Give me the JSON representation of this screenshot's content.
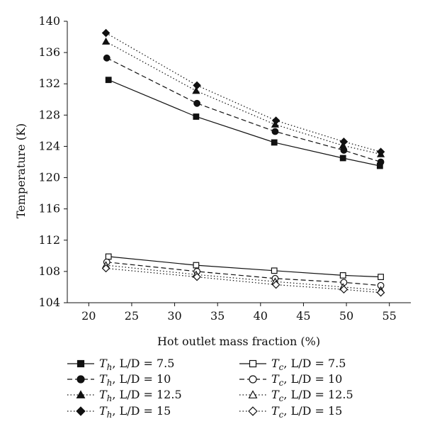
{
  "chart_data": {
    "type": "line",
    "xlabel": "Hot outlet mass fraction (%)",
    "ylabel": "Temperature (K)",
    "xlim": [
      17.5,
      57.5
    ],
    "ylim": [
      104,
      140
    ],
    "xticks": [
      20,
      25,
      30,
      35,
      40,
      45,
      50,
      55
    ],
    "yticks": [
      104,
      108,
      112,
      116,
      120,
      124,
      128,
      132,
      136,
      140
    ],
    "x_tick_labels": [
      "20",
      "25",
      "30",
      "35",
      "40",
      "45",
      "50",
      "55"
    ],
    "y_tick_labels": [
      "104",
      "108",
      "112",
      "116",
      "120",
      "124",
      "128",
      "132",
      "136",
      "140"
    ],
    "grid": false,
    "legend_position": "bottom",
    "series": [
      {
        "name": "T_h, L/D = 7.5",
        "symbol": "T",
        "subscript": "h",
        "rest": ", L/D = 7.5",
        "marker": "square",
        "filled": true,
        "dash": "solid",
        "x": [
          22.3,
          32.5,
          41.6,
          49.6,
          53.9
        ],
        "y": [
          132.5,
          127.8,
          124.5,
          122.5,
          121.5
        ]
      },
      {
        "name": "T_h, L/D = 10",
        "symbol": "T",
        "subscript": "h",
        "rest": ", L/D = 10",
        "marker": "circle",
        "filled": true,
        "dash": "dashed",
        "x": [
          22.1,
          32.6,
          41.7,
          49.7,
          54.0
        ],
        "y": [
          135.3,
          129.5,
          125.9,
          123.5,
          122.0
        ]
      },
      {
        "name": "T_h, L/D = 12.5",
        "symbol": "T",
        "subscript": "h",
        "rest": ", L/D = 12.5",
        "marker": "triangle",
        "filled": true,
        "dash": "dotted",
        "x": [
          22.0,
          32.5,
          41.7,
          49.6,
          54.0
        ],
        "y": [
          137.4,
          131.1,
          126.8,
          124.1,
          123.0
        ]
      },
      {
        "name": "T_h, L/D = 15",
        "symbol": "T",
        "subscript": "h",
        "rest": ", L/D = 15",
        "marker": "diamond",
        "filled": true,
        "dash": "dotted",
        "x": [
          22.0,
          32.6,
          41.8,
          49.7,
          54.0
        ],
        "y": [
          138.5,
          131.8,
          127.3,
          124.6,
          123.3
        ]
      },
      {
        "name": "T_c, L/D = 7.5",
        "symbol": "T",
        "subscript": "c",
        "rest": ", L/D = 7.5",
        "marker": "square",
        "filled": false,
        "dash": "solid",
        "x": [
          22.3,
          32.5,
          41.6,
          49.6,
          54.0
        ],
        "y": [
          109.9,
          108.8,
          108.1,
          107.5,
          107.3
        ]
      },
      {
        "name": "T_c, L/D = 10",
        "symbol": "T",
        "subscript": "c",
        "rest": ", L/D = 10",
        "marker": "circle",
        "filled": false,
        "dash": "dashed",
        "x": [
          22.1,
          32.6,
          41.7,
          49.7,
          54.0
        ],
        "y": [
          109.2,
          108.0,
          107.1,
          106.6,
          106.2
        ]
      },
      {
        "name": "T_c, L/D = 12.5",
        "symbol": "T",
        "subscript": "c",
        "rest": ", L/D = 12.5",
        "marker": "triangle",
        "filled": false,
        "dash": "dotted",
        "x": [
          22.0,
          32.5,
          41.7,
          49.6,
          54.0
        ],
        "y": [
          108.8,
          107.6,
          106.7,
          106.0,
          105.6
        ]
      },
      {
        "name": "T_c, L/D = 15",
        "symbol": "T",
        "subscript": "c",
        "rest": ", L/D = 15",
        "marker": "diamond",
        "filled": false,
        "dash": "dotted",
        "x": [
          22.0,
          32.6,
          41.8,
          49.7,
          54.0
        ],
        "y": [
          108.4,
          107.3,
          106.3,
          105.7,
          105.3
        ]
      }
    ]
  }
}
